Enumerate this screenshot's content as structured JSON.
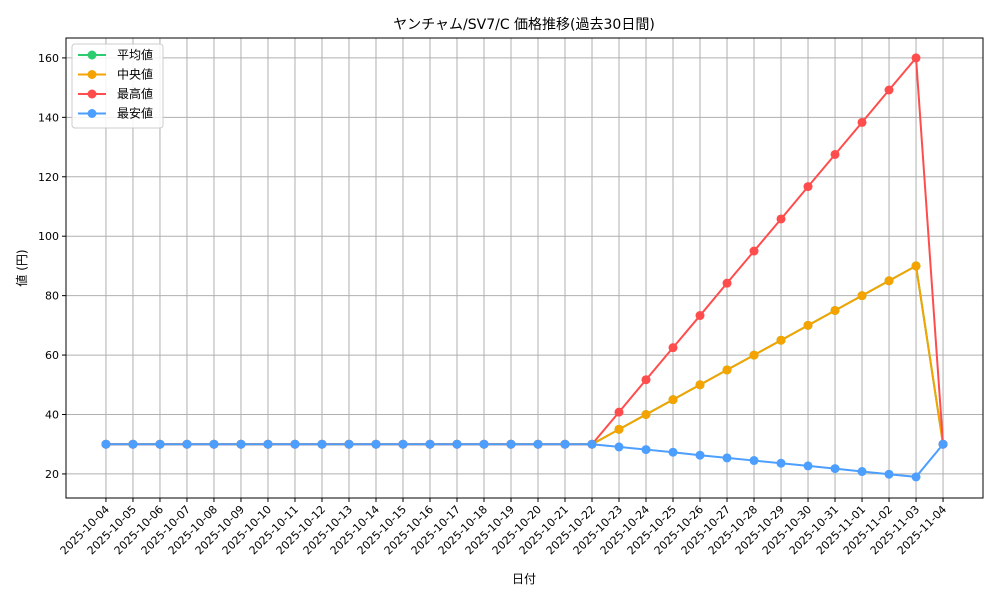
{
  "chart_data": {
    "type": "line",
    "title": "ヤンチャム/SV7/C 価格推移(過去30日間)",
    "xlabel": "日付",
    "ylabel": "値 (円)",
    "ylim": [
      11.9,
      166.7
    ],
    "yticks": [
      20,
      40,
      60,
      80,
      100,
      120,
      140,
      160
    ],
    "grid": true,
    "legend_position": "top-left",
    "x": [
      "2025-10-04",
      "2025-10-05",
      "2025-10-06",
      "2025-10-07",
      "2025-10-08",
      "2025-10-09",
      "2025-10-10",
      "2025-10-11",
      "2025-10-12",
      "2025-10-13",
      "2025-10-14",
      "2025-10-15",
      "2025-10-16",
      "2025-10-17",
      "2025-10-18",
      "2025-10-19",
      "2025-10-20",
      "2025-10-21",
      "2025-10-22",
      "2025-10-23",
      "2025-10-24",
      "2025-10-25",
      "2025-10-26",
      "2025-10-27",
      "2025-10-28",
      "2025-10-29",
      "2025-10-30",
      "2025-10-31",
      "2025-11-01",
      "2025-11-02",
      "2025-11-03",
      "2025-11-04"
    ],
    "series": [
      {
        "name": "平均値",
        "color": "#2ecc71",
        "values": [
          30,
          30,
          30,
          30,
          30,
          30,
          30,
          30,
          30,
          30,
          30,
          30,
          30,
          30,
          30,
          30,
          30,
          30,
          30,
          35,
          40,
          45,
          50,
          55,
          60,
          65,
          70,
          75,
          80,
          85,
          90,
          30
        ]
      },
      {
        "name": "中央値",
        "color": "#f5a300",
        "values": [
          30,
          30,
          30,
          30,
          30,
          30,
          30,
          30,
          30,
          30,
          30,
          30,
          30,
          30,
          30,
          30,
          30,
          30,
          30,
          35,
          40,
          45,
          50,
          55,
          60,
          65,
          70,
          75,
          80,
          85,
          90,
          30
        ]
      },
      {
        "name": "最高値",
        "color": "#ff4d4d",
        "values": [
          30,
          30,
          30,
          30,
          30,
          30,
          30,
          30,
          30,
          30,
          30,
          30,
          30,
          30,
          30,
          30,
          30,
          30,
          30,
          40.8,
          51.7,
          62.5,
          73.3,
          84.2,
          95,
          105.8,
          116.7,
          127.5,
          138.3,
          149.2,
          160,
          30
        ]
      },
      {
        "name": "最安値",
        "color": "#4d9fff",
        "values": [
          30,
          30,
          30,
          30,
          30,
          30,
          30,
          30,
          30,
          30,
          30,
          30,
          30,
          30,
          30,
          30,
          30,
          30,
          30,
          29.1,
          28.2,
          27.3,
          26.3,
          25.4,
          24.5,
          23.6,
          22.7,
          21.8,
          20.8,
          19.9,
          19,
          30
        ]
      }
    ]
  }
}
